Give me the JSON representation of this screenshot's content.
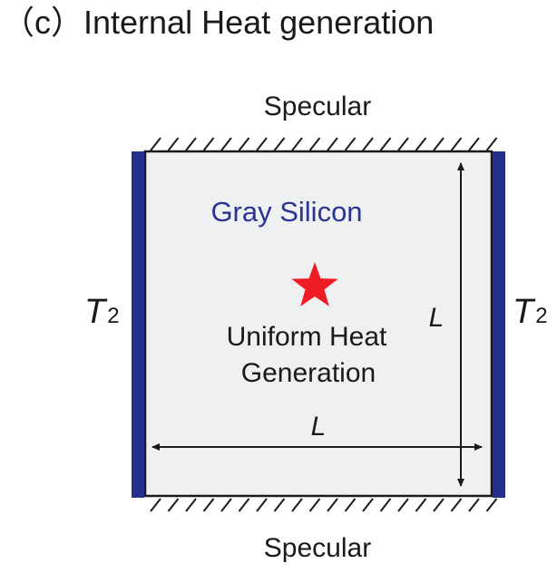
{
  "title": "（c）Internal Heat generation",
  "boundary_top": "Specular",
  "boundary_bottom": "Specular",
  "material_label": "Gray Silicon",
  "source_label_line1": "Uniform Heat",
  "source_label_line2": "Generation",
  "length_vertical": "L",
  "length_horizontal": "L",
  "temp_left": {
    "symbol": "T",
    "subscript": "2"
  },
  "temp_right": {
    "symbol": "T",
    "subscript": "2"
  },
  "icons": {
    "source": "star-icon"
  },
  "colors": {
    "wall": "#252e8c",
    "material_text": "#2b3590",
    "star": "#ee1c24",
    "domain_fill": "#eef0f2",
    "outline": "#1a1a1a"
  }
}
